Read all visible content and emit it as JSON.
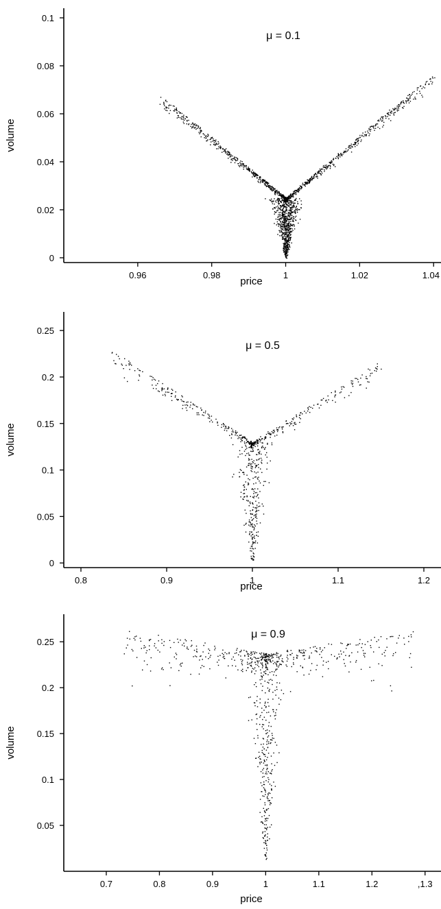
{
  "chart_data": [
    {
      "type": "scatter",
      "title": "μ = 0.1",
      "xlabel": "price",
      "ylabel": "volume",
      "xlim": [
        0.94,
        1.042
      ],
      "ylim": [
        -0.002,
        0.104
      ],
      "xticks": [
        0.96,
        0.98,
        1,
        1.02,
        1.04
      ],
      "xtick_labels": [
        "0.96",
        "0.98",
        "1",
        "1.02",
        "1.04"
      ],
      "yticks": [
        0,
        0.02,
        0.04,
        0.06,
        0.08,
        0.1
      ],
      "ytick_labels": [
        "0",
        "0.02",
        "0.04",
        "0.06",
        "0.08",
        "0.1"
      ],
      "grid": false,
      "cloud": {
        "n_points": 1700,
        "vertex": [
          1.0,
          0.0
        ],
        "arm_base_volume": 0.025,
        "left_arm_end": [
          0.966,
          0.068
        ],
        "right_arm_end": [
          1.04,
          0.077
        ],
        "arm_spread": 0.0025
      }
    },
    {
      "type": "scatter",
      "title": "μ = 0.5",
      "xlabel": "price",
      "ylabel": "volume",
      "xlim": [
        0.78,
        1.22
      ],
      "ylim": [
        -0.005,
        0.27
      ],
      "xticks": [
        0.8,
        0.9,
        1,
        1.1,
        1.2
      ],
      "xtick_labels": [
        "0.8",
        "0.9",
        "1",
        "1.1",
        "1.2"
      ],
      "yticks": [
        0,
        0.05,
        0.1,
        0.15,
        0.2,
        0.25
      ],
      "ytick_labels": [
        "0",
        "0.05",
        "0.1",
        "0.15",
        "0.2",
        "0.25"
      ],
      "grid": false,
      "cloud": {
        "n_points": 700,
        "vertex": [
          1.0,
          0.0
        ],
        "arm_base_volume": 0.13,
        "left_arm_end": [
          0.835,
          0.23
        ],
        "right_arm_end": [
          1.152,
          0.22
        ],
        "arm_spread": 0.01
      }
    },
    {
      "type": "scatter",
      "title": "μ = 0.9",
      "xlabel": "price",
      "ylabel": "volume",
      "xlim": [
        0.62,
        1.33
      ],
      "ylim": [
        0.0,
        0.28
      ],
      "xticks": [
        0.7,
        0.8,
        0.9,
        1,
        1.1,
        1.2,
        1.3
      ],
      "xtick_labels": [
        "0.7",
        "0.8",
        "0.9",
        "1",
        "1.1",
        "1.2",
        ",1.3"
      ],
      "yticks": [
        0.05,
        0.1,
        0.15,
        0.2,
        0.25
      ],
      "ytick_labels": [
        "0.05",
        "0.1",
        "0.15",
        "0.2",
        "0.25"
      ],
      "grid": false,
      "cloud": {
        "n_points": 800,
        "vertex": [
          1.0,
          0.01
        ],
        "arm_base_volume": 0.238,
        "left_arm_end": [
          0.73,
          0.265
        ],
        "right_arm_end": [
          1.28,
          0.262
        ],
        "arm_spread": 0.01
      }
    }
  ]
}
